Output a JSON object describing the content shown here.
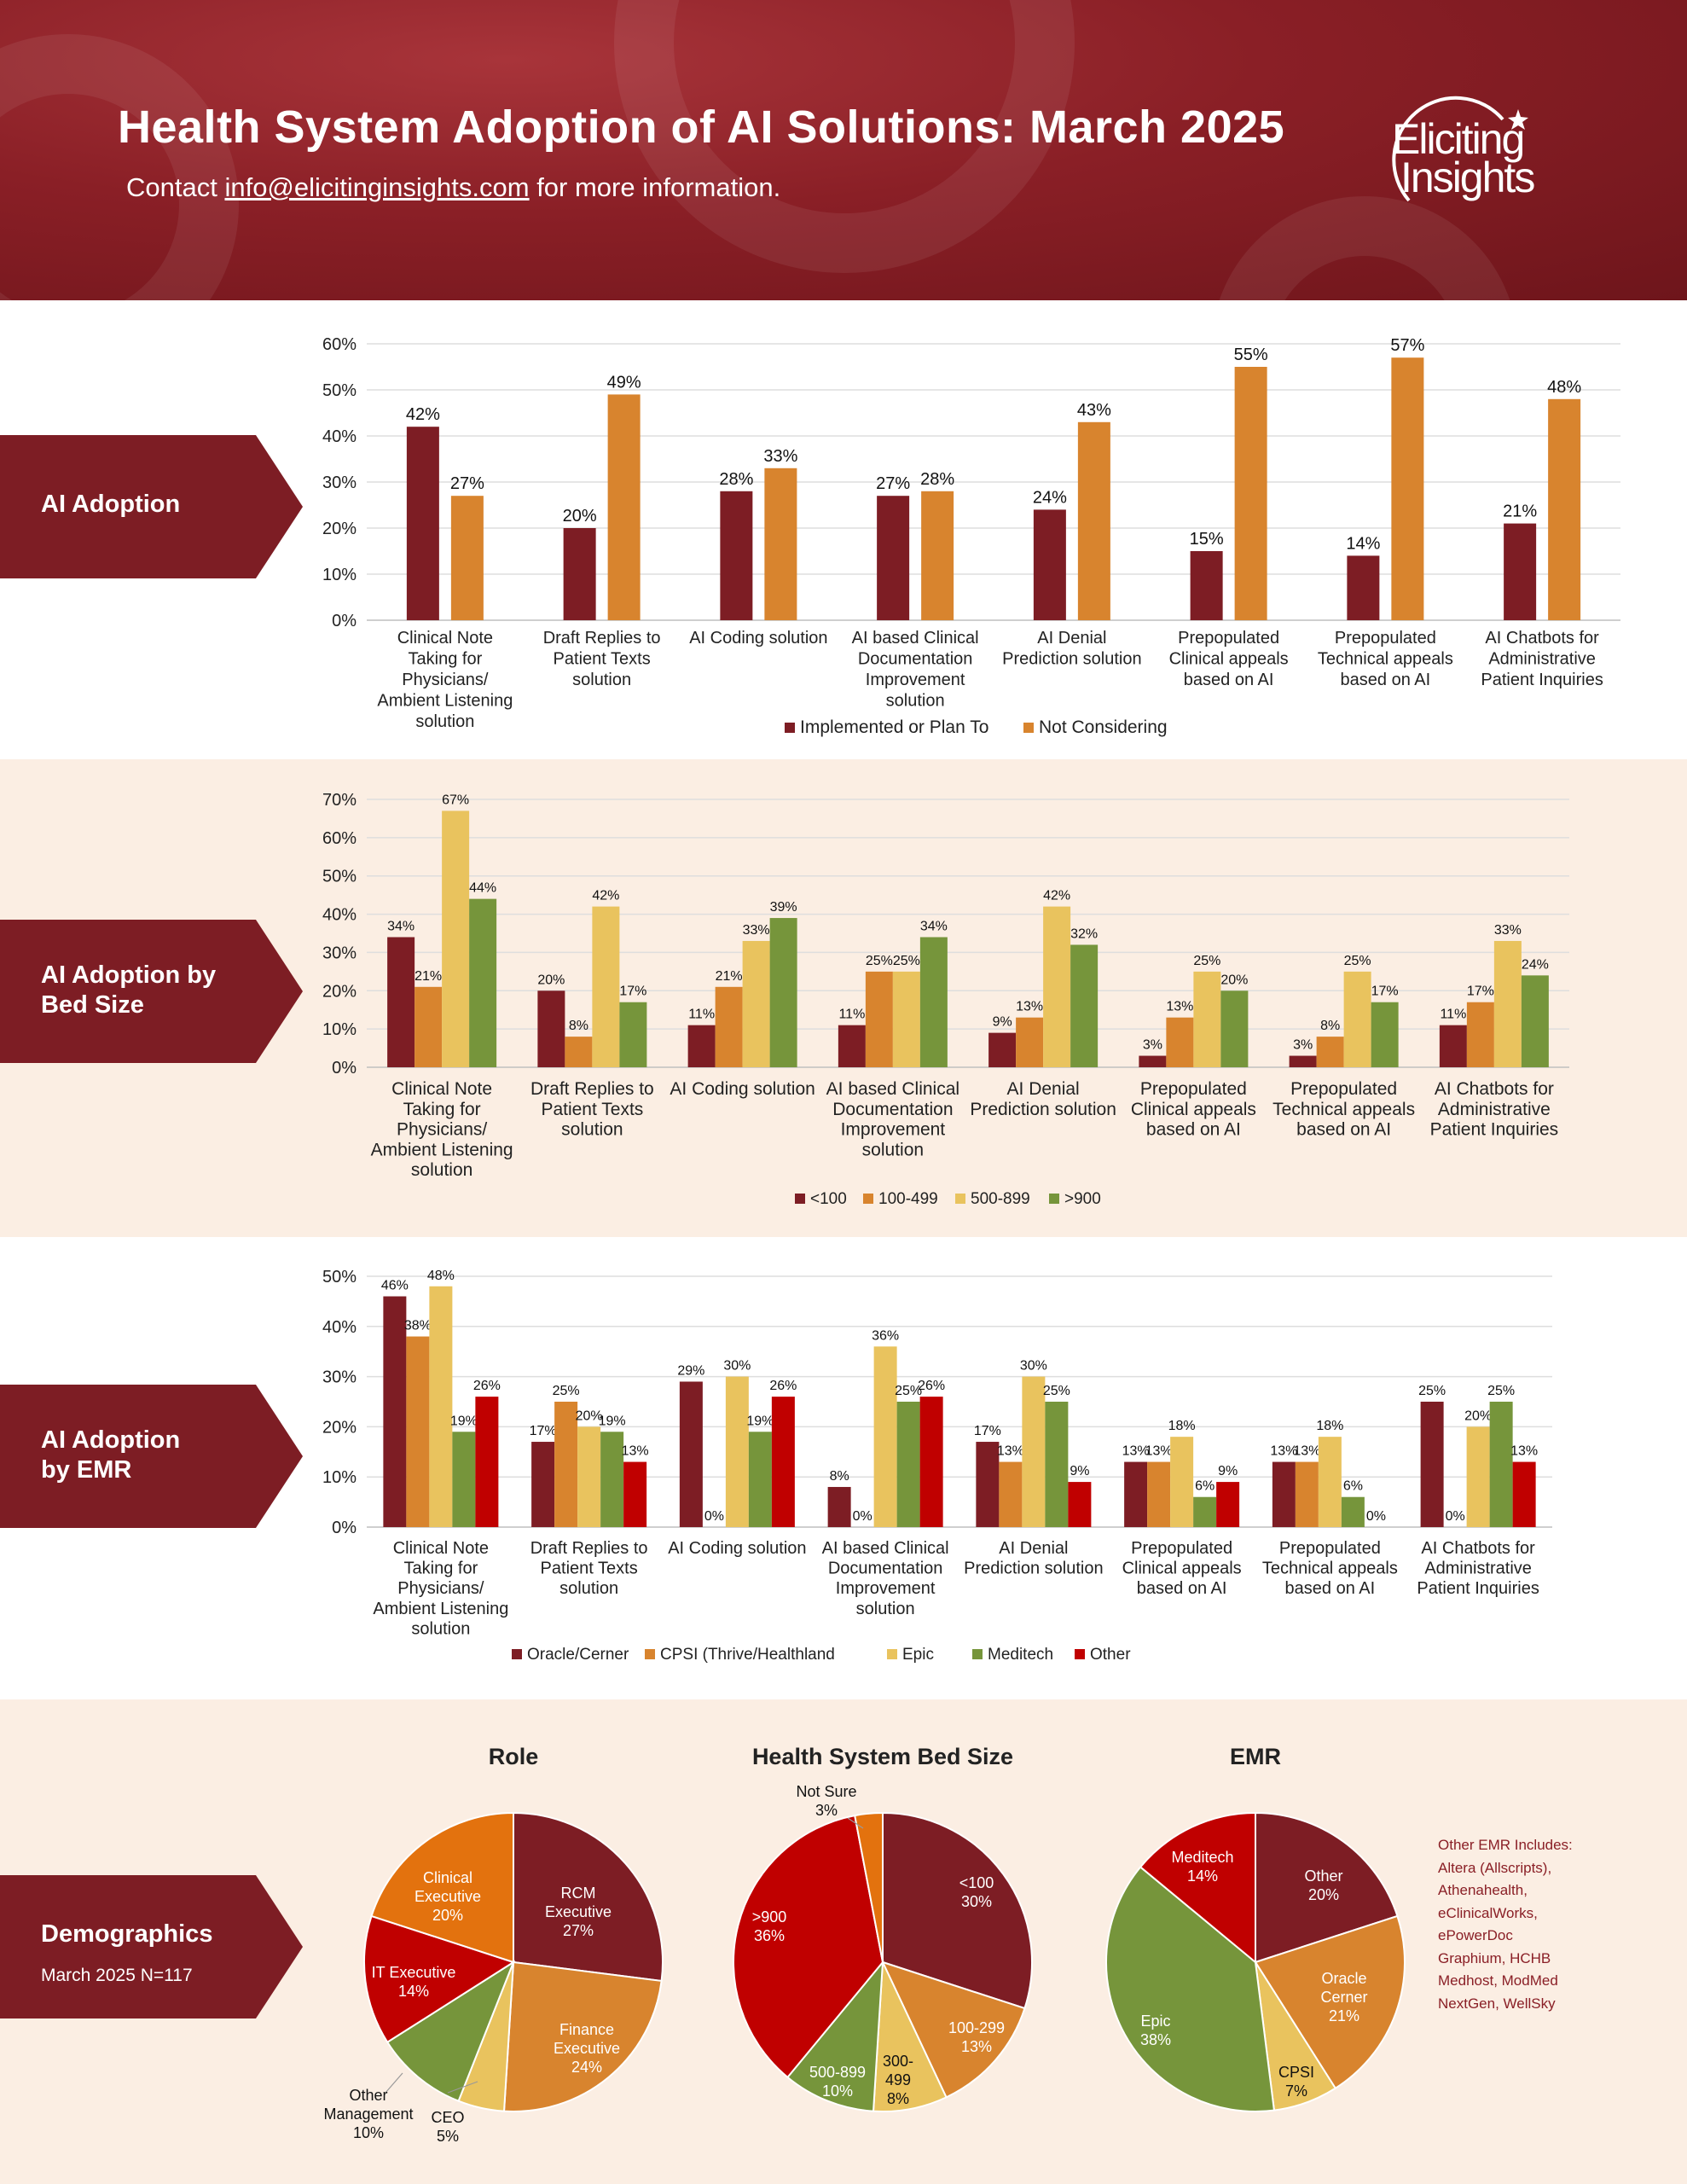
{
  "header": {
    "title": "Health System Adoption of AI Solutions: March 2025",
    "contact_prefix": "Contact ",
    "contact_email": "info@elicitinginsights.com",
    "contact_suffix": " for more information.",
    "logo_line1": "Eliciting",
    "logo_line2": "Insights"
  },
  "sections": {
    "ai_adoption": "AI Adoption",
    "bed_size": "AI Adoption by Bed Size",
    "emr": "AI Adoption by EMR",
    "demographics": "Demographics",
    "demographics_sub": "March 2025  N=117"
  },
  "colors": {
    "maroon": "#7d1d24",
    "orange": "#d8842e",
    "yellow": "#e9c35e",
    "green": "#76953b",
    "red": "#c00000",
    "cream": "#fbeee3"
  },
  "chart_data": [
    {
      "id": "chart1",
      "type": "bar",
      "title": "AI Adoption",
      "categories": [
        [
          "Clinical Note",
          "Taking for",
          "Physicians/",
          "Ambient Listening",
          "solution"
        ],
        [
          "Draft Replies to",
          "Patient Texts",
          "solution"
        ],
        [
          "AI Coding solution"
        ],
        [
          "AI based Clinical",
          "Documentation",
          "Improvement",
          "solution"
        ],
        [
          "AI Denial",
          "Prediction solution"
        ],
        [
          "Prepopulated",
          "Clinical appeals",
          "based on AI"
        ],
        [
          "Prepopulated",
          "Technical appeals",
          "based on AI"
        ],
        [
          "AI Chatbots for",
          "Administrative",
          "Patient Inquiries"
        ]
      ],
      "series": [
        {
          "name": "Implemented or Plan To",
          "color": "#7d1d24",
          "values": [
            42,
            20,
            28,
            27,
            24,
            15,
            14,
            21
          ]
        },
        {
          "name": "Not Considering",
          "color": "#d8842e",
          "values": [
            27,
            49,
            33,
            28,
            43,
            55,
            57,
            48
          ]
        }
      ],
      "yticks": [
        "0%",
        "10%",
        "20%",
        "30%",
        "40%",
        "50%",
        "60%"
      ],
      "ylim": [
        0,
        60
      ]
    },
    {
      "id": "chart2",
      "type": "bar",
      "title": "AI Adoption by Bed Size",
      "categories": [
        [
          "Clinical Note",
          "Taking for",
          "Physicians/",
          "Ambient Listening",
          "solution"
        ],
        [
          "Draft Replies to",
          "Patient Texts",
          "solution"
        ],
        [
          "AI Coding solution"
        ],
        [
          "AI based Clinical",
          "Documentation",
          "Improvement",
          "solution"
        ],
        [
          "AI Denial",
          "Prediction solution"
        ],
        [
          "Prepopulated",
          "Clinical appeals",
          "based on AI"
        ],
        [
          "Prepopulated",
          "Technical appeals",
          "based on AI"
        ],
        [
          "AI Chatbots for",
          "Administrative",
          "Patient Inquiries"
        ]
      ],
      "series": [
        {
          "name": "<100",
          "color": "#7d1d24",
          "values": [
            34,
            20,
            11,
            11,
            9,
            3,
            3,
            11
          ]
        },
        {
          "name": "100-499",
          "color": "#d8842e",
          "values": [
            21,
            8,
            21,
            25,
            13,
            13,
            8,
            17
          ]
        },
        {
          "name": "500-899",
          "color": "#e9c35e",
          "values": [
            67,
            42,
            33,
            25,
            42,
            25,
            25,
            33
          ]
        },
        {
          "name": ">900",
          "color": "#76953b",
          "values": [
            44,
            17,
            39,
            34,
            32,
            20,
            17,
            24
          ]
        }
      ],
      "yticks": [
        "0%",
        "10%",
        "20%",
        "30%",
        "40%",
        "50%",
        "60%",
        "70%"
      ],
      "ylim": [
        0,
        70
      ]
    },
    {
      "id": "chart3",
      "type": "bar",
      "title": "AI Adoption by EMR",
      "categories": [
        [
          "Clinical Note",
          "Taking for",
          "Physicians/",
          "Ambient Listening",
          "solution"
        ],
        [
          "Draft Replies to",
          "Patient Texts",
          "solution"
        ],
        [
          "AI Coding solution"
        ],
        [
          "AI based Clinical",
          "Documentation",
          "Improvement",
          "solution"
        ],
        [
          "AI Denial",
          "Prediction solution"
        ],
        [
          "Prepopulated",
          "Clinical appeals",
          "based on AI"
        ],
        [
          "Prepopulated",
          "Technical appeals",
          "based on AI"
        ],
        [
          "AI Chatbots for",
          "Administrative",
          "Patient Inquiries"
        ]
      ],
      "series": [
        {
          "name": "Oracle/Cerner",
          "color": "#7d1d24",
          "values": [
            46,
            17,
            29,
            8,
            17,
            13,
            13,
            25
          ]
        },
        {
          "name": "CPSI (Thrive/Healthland",
          "color": "#d8842e",
          "values": [
            38,
            25,
            0,
            0,
            13,
            13,
            13,
            0
          ]
        },
        {
          "name": "Epic",
          "color": "#e9c35e",
          "values": [
            48,
            20,
            30,
            36,
            30,
            18,
            18,
            20
          ]
        },
        {
          "name": "Meditech",
          "color": "#76953b",
          "values": [
            19,
            19,
            19,
            25,
            25,
            6,
            6,
            25
          ]
        },
        {
          "name": "Other",
          "color": "#c00000",
          "values": [
            26,
            13,
            26,
            26,
            9,
            9,
            0,
            13
          ]
        }
      ],
      "yticks": [
        "0%",
        "10%",
        "20%",
        "30%",
        "40%",
        "50%"
      ],
      "ylim": [
        0,
        50
      ]
    },
    {
      "id": "pie_role",
      "type": "pie",
      "title": "Role",
      "slices": [
        {
          "label": [
            "RCM",
            "Executive",
            "27%"
          ],
          "value": 27,
          "color": "#7d1d24"
        },
        {
          "label": [
            "Finance",
            "Executive",
            "24%"
          ],
          "value": 24,
          "color": "#d8842e"
        },
        {
          "label": [
            "CEO",
            "5%"
          ],
          "value": 5,
          "color": "#e9c35e"
        },
        {
          "label": [
            "Other",
            "Management",
            "10%"
          ],
          "value": 10,
          "color": "#76953b"
        },
        {
          "label": [
            "IT Executive",
            "14%"
          ],
          "value": 14,
          "color": "#c00000"
        },
        {
          "label": [
            "Clinical",
            "Executive",
            "20%"
          ],
          "value": 20,
          "color": "#e3720e"
        }
      ]
    },
    {
      "id": "pie_bed",
      "type": "pie",
      "title": "Health System Bed Size",
      "slices": [
        {
          "label": [
            "<100",
            "30%"
          ],
          "value": 30,
          "color": "#7d1d24"
        },
        {
          "label": [
            "100-299",
            "13%"
          ],
          "value": 13,
          "color": "#d8842e"
        },
        {
          "label": [
            "300-",
            "499",
            "8%"
          ],
          "value": 8,
          "color": "#e9c35e"
        },
        {
          "label": [
            "500-899",
            "10%"
          ],
          "value": 10,
          "color": "#76953b"
        },
        {
          "label": [
            ">900",
            "36%"
          ],
          "value": 36,
          "color": "#c00000"
        },
        {
          "label": [
            "Not Sure",
            "3%"
          ],
          "value": 3,
          "color": "#e3720e"
        }
      ]
    },
    {
      "id": "pie_emr",
      "type": "pie",
      "title": "EMR",
      "slices": [
        {
          "label": [
            "Other",
            "20%"
          ],
          "value": 20,
          "color": "#7d1d24"
        },
        {
          "label": [
            "Oracle",
            "Cerner",
            "21%"
          ],
          "value": 21,
          "color": "#d8842e"
        },
        {
          "label": [
            "CPSI",
            "7%"
          ],
          "value": 7,
          "color": "#e9c35e"
        },
        {
          "label": [
            "Epic",
            "38%"
          ],
          "value": 38,
          "color": "#76953b"
        },
        {
          "label": [
            "Meditech",
            "14%"
          ],
          "value": 14,
          "color": "#c00000"
        }
      ]
    }
  ],
  "emr_note": [
    "Other EMR Includes:",
    "Altera (Allscripts),",
    "Athenahealth,",
    "eClinicalWorks,",
    "ePowerDoc",
    "Graphium, HCHB",
    "Medhost, ModMed",
    "NextGen, WellSky"
  ]
}
